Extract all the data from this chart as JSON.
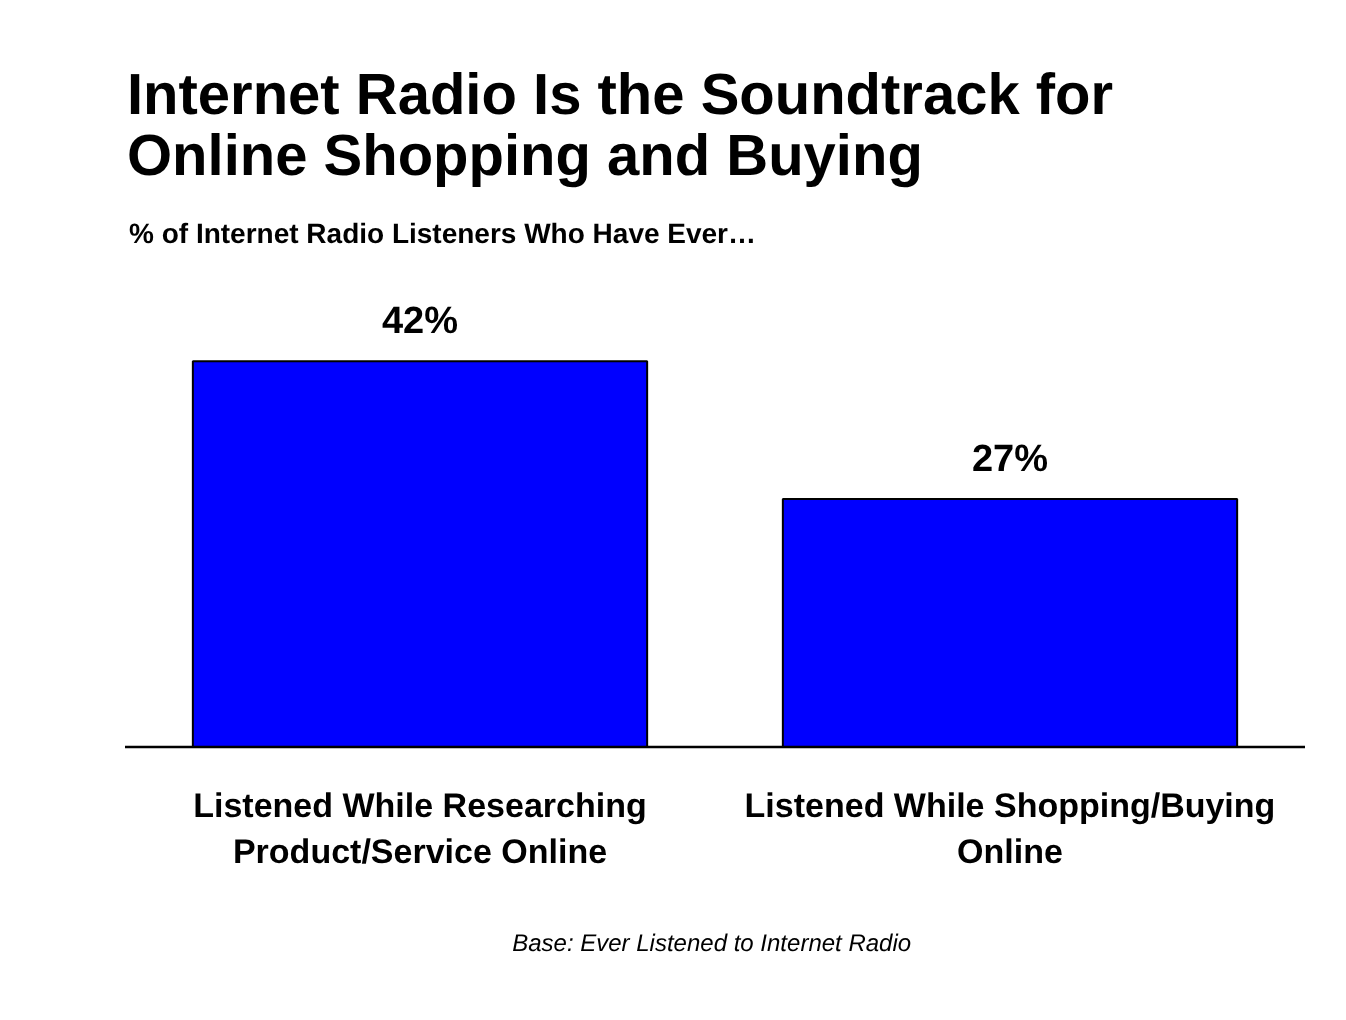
{
  "chart_data": {
    "type": "bar",
    "title": "Internet Radio Is the Soundtrack for\nOnline Shopping and Buying",
    "subtitle": "% of Internet Radio Listeners Who Have Ever…",
    "categories": [
      "Listened While Researching\nProduct/Service Online",
      "Listened While Shopping/Buying\nOnline"
    ],
    "values": [
      42,
      27
    ],
    "color": "#0000ff",
    "value_labels": [
      "42%",
      "27%"
    ],
    "annotations": [
      "Base:  Ever Listened to Internet Radio"
    ]
  }
}
